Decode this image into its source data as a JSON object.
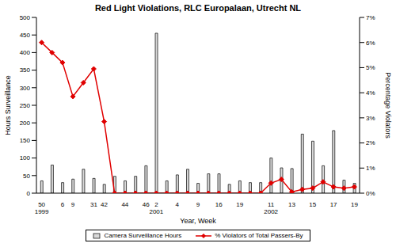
{
  "chart_data": {
    "type": "bar",
    "title": "Red Light Violations, RLC Europalaan, Utrecht NL",
    "x_label": "Year, Week",
    "y_label": "Hours Surveillance",
    "y2_label": "Percentage Violators",
    "categories": [
      "50\n1999",
      null,
      "6",
      "9",
      null,
      "31",
      "42",
      null,
      "44",
      null,
      "46",
      "2\n2001",
      null,
      "4",
      null,
      "9",
      null,
      "16",
      null,
      "19",
      null,
      null,
      "11\n2002",
      null,
      "13",
      null,
      "15",
      null,
      "17",
      null,
      "19"
    ],
    "series": [
      {
        "name": "Camera Surveillance Hours",
        "type": "bar",
        "color": "#d9d9d9",
        "axis": "y",
        "values": [
          35,
          80,
          30,
          40,
          68,
          42,
          25,
          48,
          35,
          48,
          78,
          455,
          35,
          52,
          68,
          28,
          55,
          55,
          25,
          35,
          30,
          30,
          100,
          72,
          70,
          168,
          148,
          78,
          178,
          37,
          28
        ]
      },
      {
        "name": "% Violators of Total Passers-By",
        "type": "line",
        "color": "#e00000",
        "marker": "diamond",
        "axis": "y2",
        "values": [
          6.0,
          5.6,
          5.2,
          3.85,
          4.4,
          4.95,
          2.85,
          0,
          0,
          0,
          0,
          0,
          0,
          0,
          0,
          0,
          0,
          0,
          0,
          0,
          0,
          0,
          0.4,
          0.55,
          0.05,
          0.15,
          0.2,
          0.45,
          0.25,
          0.2,
          0.25
        ]
      }
    ],
    "ylim": [
      0,
      500
    ],
    "yticks": [
      0,
      50,
      100,
      150,
      200,
      250,
      300,
      350,
      400,
      450,
      500
    ],
    "y2lim": [
      0,
      7
    ],
    "y2ticks": [
      {
        "value": 0,
        "label": "0%"
      },
      {
        "value": 1,
        "label": "1%"
      },
      {
        "value": 2,
        "label": "2%"
      },
      {
        "value": 3,
        "label": "3%"
      },
      {
        "value": 4,
        "label": "4%"
      },
      {
        "value": 5,
        "label": "5%"
      },
      {
        "value": 6,
        "label": "6%"
      },
      {
        "value": 7,
        "label": "7%"
      }
    ],
    "grid": false,
    "legend": "bottom"
  }
}
